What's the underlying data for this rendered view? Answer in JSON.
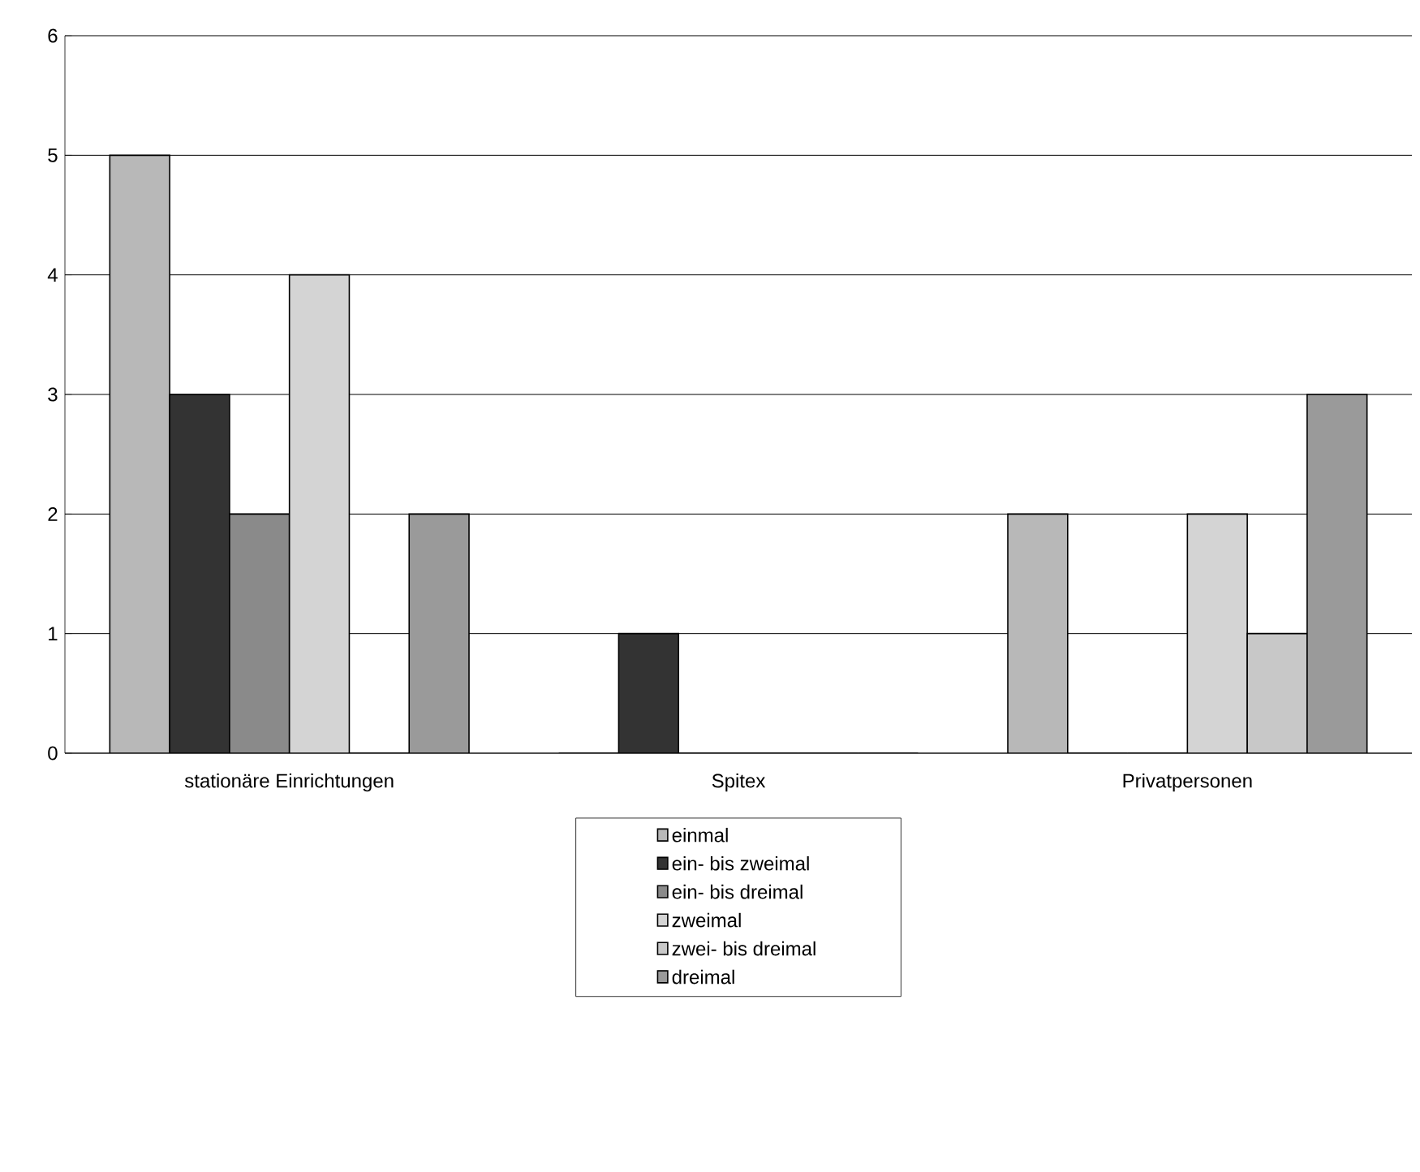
{
  "chart_data": {
    "type": "bar",
    "categories": [
      "stationäre Einrichtungen",
      "Spitex",
      "Privatpersonen"
    ],
    "series": [
      {
        "name": "einmal",
        "color": "#b8b8b8",
        "values": [
          5,
          0,
          2
        ]
      },
      {
        "name": "ein- bis zweimal",
        "color": "#333333",
        "values": [
          3,
          1,
          0
        ]
      },
      {
        "name": "ein- bis dreimal",
        "color": "#8a8a8a",
        "values": [
          2,
          0,
          0
        ]
      },
      {
        "name": "zweimal",
        "color": "#d4d4d4",
        "values": [
          4,
          0,
          2
        ]
      },
      {
        "name": "zwei- bis dreimal",
        "color": "#c8c8c8",
        "values": [
          0,
          0,
          1
        ]
      },
      {
        "name": "dreimal",
        "color": "#9a9a9a",
        "values": [
          2,
          0,
          3
        ]
      }
    ],
    "ylim": [
      0,
      6
    ],
    "yticks": [
      0,
      1,
      2,
      3,
      4,
      5,
      6
    ],
    "grid": "y",
    "legend": "bottom"
  }
}
